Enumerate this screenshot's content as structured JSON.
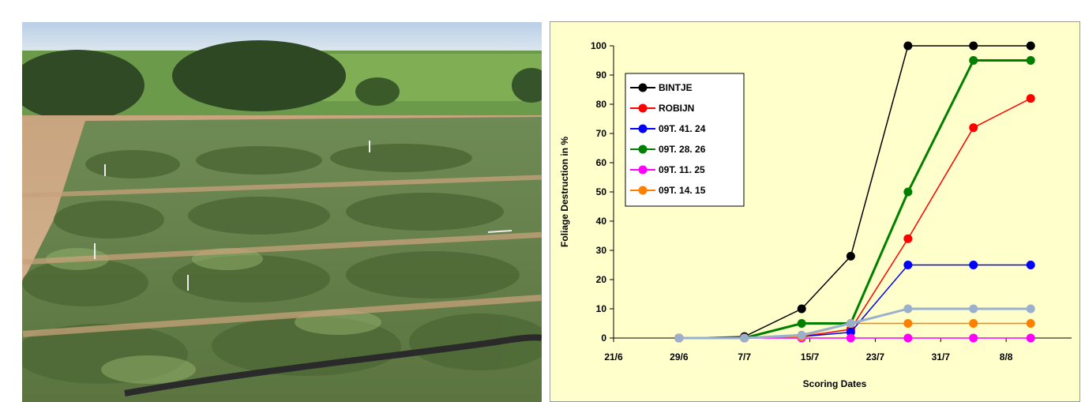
{
  "photo": {
    "icon": "potato-field-photo"
  },
  "chart_data": {
    "type": "line",
    "title": "",
    "xlabel": "Scoring Dates",
    "ylabel": "Foliage Destruction  in %",
    "x_ticks": [
      "21/6",
      "29/6",
      "7/7",
      "15/7",
      "23/7",
      "31/7",
      "8/8"
    ],
    "xlim": [
      "21/6",
      "16/8"
    ],
    "ylim": [
      0,
      100
    ],
    "y_ticks": [
      0,
      10,
      20,
      30,
      40,
      50,
      60,
      70,
      80,
      90,
      100
    ],
    "legend_position": "top-left",
    "x": [
      "29/6",
      "7/7",
      "14/7",
      "20/7",
      "27/7",
      "4/8",
      "11/8"
    ],
    "series": [
      {
        "name": "BINTJE",
        "color": "#000000",
        "values": [
          0,
          0.5,
          10,
          28,
          100,
          100,
          100
        ]
      },
      {
        "name": "ROBIJN",
        "color": "#ff0000",
        "values": [
          0,
          0,
          0.5,
          3,
          34,
          72,
          82
        ]
      },
      {
        "name": "09T. 41. 24",
        "color": "#0000ff",
        "values": [
          0,
          0,
          0.5,
          2,
          25,
          25,
          25
        ]
      },
      {
        "name": "09T. 28. 26",
        "color": "#008000",
        "values": [
          0,
          0,
          5,
          5,
          50,
          95,
          95
        ]
      },
      {
        "name": "09T. 11. 25",
        "color": "#ff00ff",
        "values": [
          0,
          0,
          0,
          0,
          0,
          0,
          0
        ]
      },
      {
        "name": "09T. 14. 15",
        "color": "#ff8000",
        "values": [
          0,
          0,
          0.5,
          5,
          5,
          5,
          5
        ]
      },
      {
        "name": "",
        "color": "#9ab0cc",
        "values": [
          0,
          0,
          1,
          5,
          10,
          10,
          10
        ]
      }
    ]
  }
}
